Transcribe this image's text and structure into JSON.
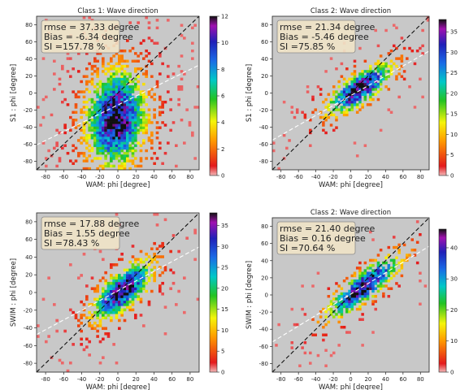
{
  "chart_data": [
    {
      "type": "heatmap",
      "title": "Class 1: Wave direction",
      "xlabel": "WAM: phi  [degree]",
      "ylabel": "S1 : phi [degree]",
      "xlim": [
        -90,
        90
      ],
      "ylim": [
        -90,
        90
      ],
      "xticks": [
        -80,
        -60,
        -40,
        -20,
        0,
        20,
        40,
        60,
        80
      ],
      "yticks": [
        -80,
        -60,
        -40,
        -20,
        0,
        20,
        40,
        60,
        80
      ],
      "colorbar": {
        "min": 0,
        "max": 12,
        "ticks": [
          0,
          2,
          4,
          6,
          8,
          10,
          12
        ]
      },
      "stats": [
        "rmse = 37.33 degree",
        "Bias = -6.34 degree",
        "SI =157.78 %"
      ],
      "density": {
        "center": [
          -2,
          -30
        ],
        "spread": [
          22,
          38
        ],
        "corr": 0.1,
        "noise": 0.75,
        "fill": 0.55
      },
      "regression_line": {
        "slope": 0.52,
        "intercept": -14
      },
      "grid": false
    },
    {
      "type": "heatmap",
      "title": "Class 2: Wave direction",
      "xlabel": "WAM: phi  [degree]",
      "ylabel": "S1 : phi [degree]",
      "xlim": [
        -90,
        90
      ],
      "ylim": [
        -90,
        90
      ],
      "xticks": [
        -80,
        -60,
        -40,
        -20,
        0,
        20,
        40,
        60,
        80
      ],
      "yticks": [
        -80,
        -60,
        -40,
        -20,
        0,
        20,
        40,
        60,
        80
      ],
      "colorbar": {
        "min": 0,
        "max": 38,
        "ticks": [
          0,
          5,
          10,
          15,
          20,
          25,
          30,
          35
        ]
      },
      "stats": [
        "rmse = 21.34 degree",
        "Bias = -5.46 degree",
        "SI =75.85 %"
      ],
      "density": {
        "center": [
          10,
          5
        ],
        "spread": [
          25,
          20
        ],
        "corr": 0.75,
        "noise": 0.45,
        "fill": 0.45
      },
      "regression_line": {
        "slope": 0.58,
        "intercept": -3
      },
      "grid": false
    },
    {
      "type": "heatmap",
      "title": "",
      "xlabel": "WAM: phi  [degree]",
      "ylabel": "SWIM : phi  [degree]",
      "xlim": [
        -90,
        90
      ],
      "ylim": [
        -90,
        90
      ],
      "xticks": [
        -80,
        -60,
        -40,
        -20,
        0,
        20,
        40,
        60,
        80
      ],
      "yticks": [
        -80,
        -60,
        -40,
        -20,
        0,
        20,
        40,
        60,
        80
      ],
      "colorbar": {
        "min": 0,
        "max": 38,
        "ticks": [
          0,
          5,
          10,
          15,
          20,
          25,
          30,
          35
        ]
      },
      "stats": [
        "rmse = 17.88 degree",
        "Bias = 1.55 degree",
        "SI =78.43 %"
      ],
      "density": {
        "center": [
          5,
          2
        ],
        "spread": [
          22,
          22
        ],
        "corr": 0.7,
        "noise": 0.5,
        "fill": 0.5
      },
      "regression_line": {
        "slope": 0.55,
        "intercept": 2
      },
      "grid": false
    },
    {
      "type": "heatmap",
      "title": "Class 2: Wave direction",
      "xlabel": "WAM: phi  [degree]",
      "ylabel": "SWIM : phi  [degree]",
      "xlim": [
        -90,
        90
      ],
      "ylim": [
        -90,
        90
      ],
      "xticks": [
        -80,
        -60,
        -40,
        -20,
        0,
        20,
        40,
        60,
        80
      ],
      "yticks": [
        -80,
        -60,
        -40,
        -20,
        0,
        20,
        40,
        60,
        80
      ],
      "colorbar": {
        "min": 0,
        "max": 46,
        "ticks": [
          0,
          10,
          20,
          30,
          40
        ]
      },
      "stats": [
        "rmse = 21.40 degree",
        "Bias = 0.16 degree",
        "SI =70.64 %"
      ],
      "density": {
        "center": [
          15,
          10
        ],
        "spread": [
          28,
          24
        ],
        "corr": 0.85,
        "noise": 0.4,
        "fill": 0.45
      },
      "regression_line": {
        "slope": 0.62,
        "intercept": 1
      },
      "grid": false
    }
  ]
}
